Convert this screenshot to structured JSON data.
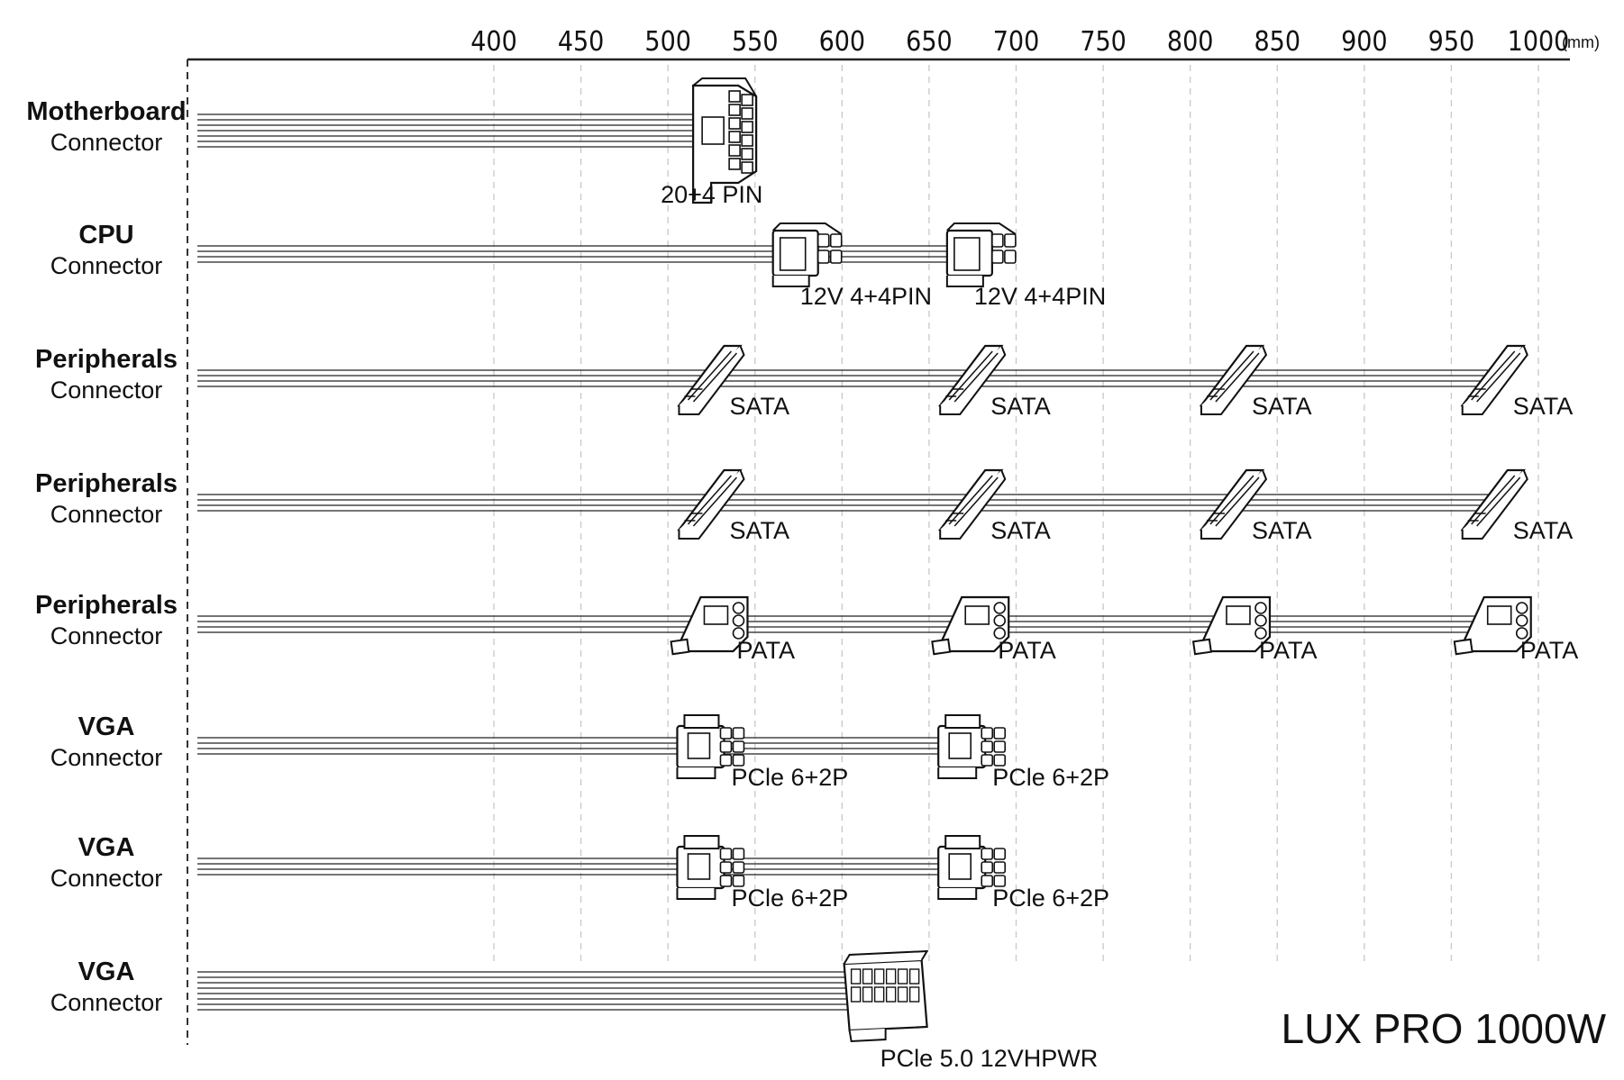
{
  "title": "LUX PRO 1000W",
  "axis": {
    "unit": "(mm)",
    "ticks": [
      "400",
      "450",
      "500",
      "550",
      "600",
      "650",
      "700",
      "750",
      "800",
      "850",
      "900",
      "950",
      "1000"
    ],
    "tick_values": [
      400,
      450,
      500,
      550,
      600,
      650,
      700,
      750,
      800,
      850,
      900,
      950,
      1000
    ]
  },
  "rows": [
    {
      "label_bold": "Motherboard",
      "label": "Connector",
      "wires": 7,
      "connectors": [
        {
          "type": "atx",
          "position_mm": 530,
          "label": "20+4 PIN"
        }
      ]
    },
    {
      "label_bold": "CPU",
      "label": "Connector",
      "wires": 4,
      "connectors": [
        {
          "type": "eps",
          "position_mm": 580,
          "label": "12V 4+4PIN"
        },
        {
          "type": "eps",
          "position_mm": 680,
          "label": "12V 4+4PIN"
        }
      ]
    },
    {
      "label_bold": "Peripherals",
      "label": "Connector",
      "wires": 4,
      "connectors": [
        {
          "type": "sata",
          "position_mm": 525,
          "label": "SATA"
        },
        {
          "type": "sata",
          "position_mm": 675,
          "label": "SATA"
        },
        {
          "type": "sata",
          "position_mm": 825,
          "label": "SATA"
        },
        {
          "type": "sata",
          "position_mm": 975,
          "label": "SATA"
        }
      ]
    },
    {
      "label_bold": "Peripherals",
      "label": "Connector",
      "wires": 4,
      "connectors": [
        {
          "type": "sata",
          "position_mm": 525,
          "label": "SATA"
        },
        {
          "type": "sata",
          "position_mm": 675,
          "label": "SATA"
        },
        {
          "type": "sata",
          "position_mm": 825,
          "label": "SATA"
        },
        {
          "type": "sata",
          "position_mm": 975,
          "label": "SATA"
        }
      ]
    },
    {
      "label_bold": "Peripherals",
      "label": "Connector",
      "wires": 4,
      "connectors": [
        {
          "type": "pata",
          "position_mm": 525,
          "label": "PATA"
        },
        {
          "type": "pata",
          "position_mm": 675,
          "label": "PATA"
        },
        {
          "type": "pata",
          "position_mm": 825,
          "label": "PATA"
        },
        {
          "type": "pata",
          "position_mm": 975,
          "label": "PATA"
        }
      ]
    },
    {
      "label_bold": "VGA",
      "label": "Connector",
      "wires": 4,
      "connectors": [
        {
          "type": "pcie",
          "position_mm": 525,
          "label": "PCle 6+2P"
        },
        {
          "type": "pcie",
          "position_mm": 675,
          "label": "PCle 6+2P"
        }
      ]
    },
    {
      "label_bold": "VGA",
      "label": "Connector",
      "wires": 4,
      "connectors": [
        {
          "type": "pcie",
          "position_mm": 525,
          "label": "PCle 6+2P"
        },
        {
          "type": "pcie",
          "position_mm": 675,
          "label": "PCle 6+2P"
        }
      ]
    },
    {
      "label_bold": "VGA",
      "label": "Connector",
      "wires": 8,
      "connectors": [
        {
          "type": "hpwr",
          "position_mm": 625,
          "label": "PCle 5.0 12VHPWR"
        }
      ]
    }
  ]
}
